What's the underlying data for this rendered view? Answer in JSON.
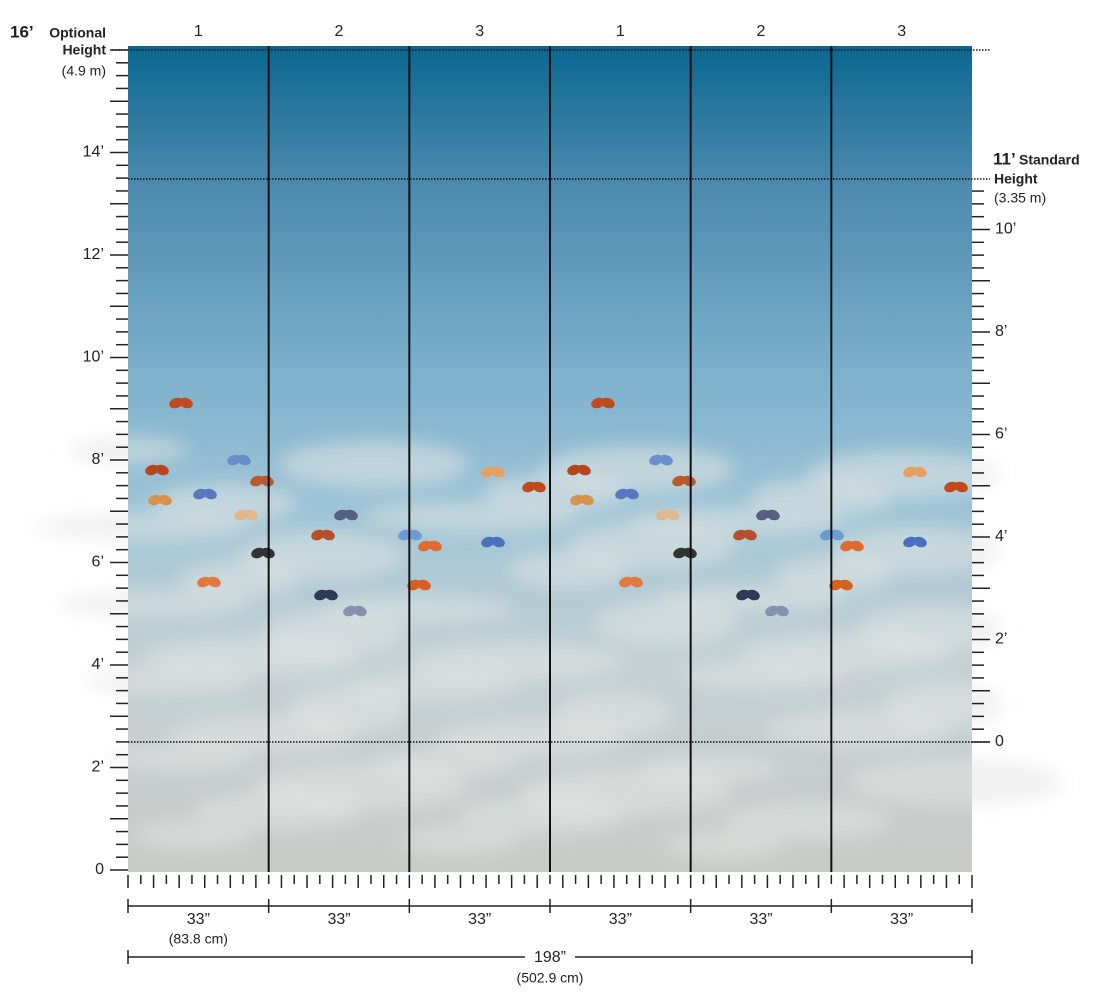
{
  "panels": [
    "1",
    "2",
    "3",
    "1",
    "2",
    "3"
  ],
  "left_scale": {
    "ticks": [
      "0",
      "2’",
      "4’",
      "6’",
      "8’",
      "10’",
      "12’",
      "14’"
    ],
    "top": {
      "value": "16’",
      "label_lines": [
        "Optional",
        "Height"
      ],
      "metric": "(4.9 m)"
    }
  },
  "right_scale": {
    "ticks": [
      "0",
      "2’",
      "4’",
      "6’",
      "8’",
      "10’"
    ],
    "top": {
      "value": "11’",
      "label_lines": [
        "Standard",
        "Height"
      ],
      "metric": "(3.35 m)"
    }
  },
  "widths": {
    "panel": [
      "33”",
      "33”",
      "33”",
      "33”",
      "33”",
      "33”"
    ],
    "panel_metric": "(83.8 cm)",
    "total": "198”",
    "total_metric": "(502.9 cm)"
  }
}
